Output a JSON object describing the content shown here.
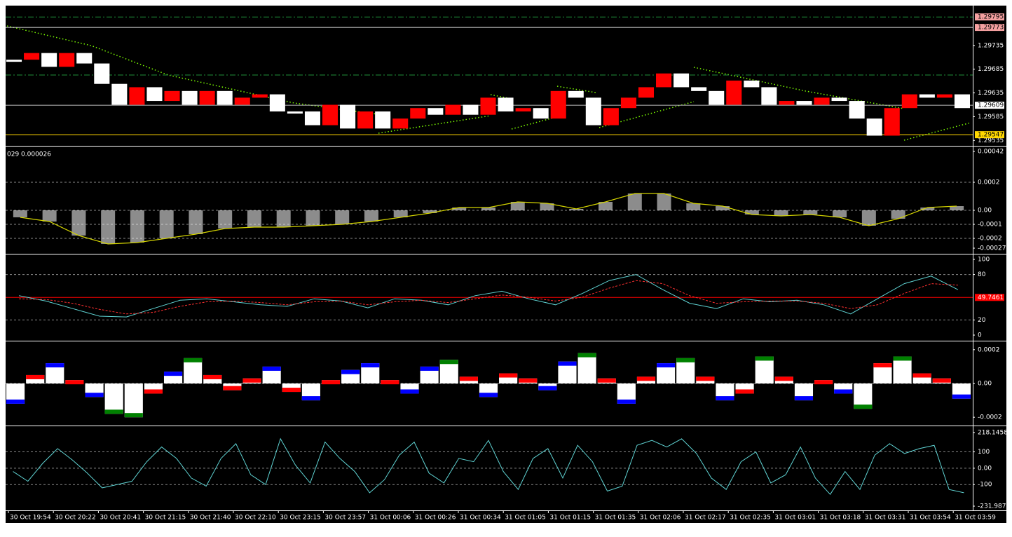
{
  "chart_data": [
    {
      "type": "renko",
      "up_color": "#ff0000",
      "down_color": "#ffffff",
      "ylim": [
        1.29528,
        1.29813
      ],
      "yticks": [
        1.29735,
        1.29685,
        1.29635,
        1.29585,
        1.29535
      ],
      "price_levels": [
        {
          "value": 1.29795,
          "bg": "#f4a0a0",
          "line": "#1f8f3a"
        },
        {
          "value": 1.29773,
          "bg": "#f4a0a0",
          "line": "#dddddd"
        },
        {
          "value": 1.29609,
          "bg": "#ffffff",
          "line": "#bbbbbb"
        },
        {
          "value": 1.29547,
          "bg": "#ffd700",
          "line": "#ffd700"
        }
      ],
      "values": [
        1.29705,
        1.29719,
        1.2969,
        1.29719,
        1.29697,
        1.29654,
        1.2961,
        1.29647,
        1.29618,
        1.29639,
        1.2961,
        1.29639,
        1.2961,
        1.29625,
        1.29632,
        1.29596,
        1.29596,
        1.29567,
        1.2961,
        1.2956,
        1.29596,
        1.2956,
        1.29581,
        1.29603,
        1.29589,
        1.2961,
        1.29589,
        1.29625,
        1.29596,
        1.29603,
        1.29581,
        1.29639,
        1.29625,
        1.29567,
        1.29603,
        1.29625,
        1.29647,
        1.29676,
        1.29647,
        1.29639,
        1.2961,
        1.29661,
        1.29647,
        1.2961,
        1.29618,
        1.2961,
        1.29625,
        1.29618,
        1.29581,
        1.29545,
        1.29603,
        1.29632,
        1.29625,
        1.29632,
        1.29603
      ]
    },
    {
      "type": "macd",
      "label": "029 0.000026",
      "bar_color": "#ffffff",
      "line_color": "#d4d400",
      "ylim": [
        -0.00027,
        0.00042
      ],
      "yticks": [
        0.00042,
        0.0002,
        {
          "value": 0,
          "label": "0.00"
        },
        -0.0001,
        -0.0002,
        -0.00027
      ],
      "values": [
        -5e-05,
        -8e-05,
        -0.00018,
        -0.00024,
        -0.00023,
        -0.0002,
        -0.00017,
        -0.00013,
        -0.00012,
        -0.00012,
        -0.00011,
        -0.0001,
        -8e-05,
        -5e-05,
        -2e-05,
        2e-05,
        2e-05,
        6e-05,
        5e-05,
        1e-05,
        6e-05,
        0.00012,
        0.00012,
        5e-05,
        3e-05,
        -3e-05,
        -4e-05,
        -3e-05,
        -5e-05,
        -0.00011,
        -6e-05,
        2e-05,
        3e-05
      ]
    },
    {
      "type": "stochastic",
      "ylim": [
        0,
        100
      ],
      "yticks": [
        100,
        80,
        20,
        0
      ],
      "level": 49.7461,
      "level_color": "#ff0000",
      "series": [
        {
          "color": "#5fd3d3",
          "values": [
            52,
            45,
            35,
            25,
            24,
            35,
            46,
            48,
            44,
            40,
            38,
            48,
            45,
            36,
            48,
            46,
            40,
            52,
            58,
            48,
            40,
            55,
            72,
            80,
            60,
            42,
            35,
            48,
            44,
            46,
            40,
            28,
            48,
            68,
            78,
            60
          ]
        },
        {
          "color": "#ff3030",
          "values": [
            48,
            47,
            42,
            34,
            28,
            30,
            38,
            44,
            45,
            43,
            40,
            44,
            45,
            40,
            44,
            46,
            43,
            48,
            53,
            50,
            45,
            50,
            62,
            72,
            68,
            52,
            42,
            44,
            45,
            45,
            42,
            35,
            40,
            55,
            68,
            66
          ]
        }
      ]
    },
    {
      "type": "histogram",
      "rise_color": "#0000ff",
      "fall_color": "#ff0000",
      "peak_color": "#008000",
      "bar_color": "#ffffff",
      "ylim": [
        -0.00022,
        0.00022
      ],
      "yticks": [
        0.0002,
        {
          "value": 0,
          "label": "0.00"
        },
        -0.0002
      ],
      "values": [
        -0.00012,
        5e-05,
        0.00012,
        2e-05,
        -8e-05,
        -0.00018,
        -0.0002,
        -6e-05,
        7e-05,
        0.00015,
        5e-05,
        -4e-05,
        3e-05,
        0.0001,
        -5e-05,
        -0.0001,
        2e-05,
        8e-05,
        0.00012,
        2e-05,
        -6e-05,
        0.0001,
        0.00014,
        4e-05,
        -8e-05,
        6e-05,
        3e-05,
        -4e-05,
        0.00013,
        0.00018,
        3e-05,
        -0.00012,
        4e-05,
        0.00012,
        0.00015,
        4e-05,
        -0.0001,
        -6e-05,
        0.00016,
        4e-05,
        -0.0001,
        2e-05,
        -6e-05,
        -0.00015,
        0.00012,
        0.00016,
        6e-05,
        3e-05,
        -9e-05
      ]
    },
    {
      "type": "line",
      "color": "#5fd3d3",
      "ylim": [
        -231.987,
        218.1458
      ],
      "yticks": [
        218.1458,
        100,
        {
          "value": 0,
          "label": "0.00"
        },
        -100,
        -231.987
      ],
      "values": [
        -20,
        -80,
        30,
        120,
        50,
        -30,
        -120,
        -100,
        -80,
        40,
        130,
        60,
        -60,
        -110,
        60,
        150,
        -40,
        -100,
        180,
        20,
        -90,
        160,
        60,
        -20,
        -150,
        -70,
        80,
        160,
        -30,
        -90,
        60,
        40,
        170,
        -20,
        -130,
        60,
        120,
        -60,
        140,
        40,
        -140,
        -110,
        140,
        170,
        130,
        180,
        90,
        -60,
        -130,
        40,
        100,
        -90,
        -40,
        130,
        -60,
        -160,
        -20,
        -130,
        80,
        150,
        90,
        120,
        140,
        -130,
        -150
      ]
    }
  ],
  "x_axis": {
    "categories": [
      "30 Oct 19:54",
      "30 Oct 20:22",
      "30 Oct 20:41",
      "30 Oct 21:15",
      "30 Oct 21:40",
      "30 Oct 22:10",
      "30 Oct 23:15",
      "30 Oct 23:57",
      "31 Oct 00:06",
      "31 Oct 00:26",
      "31 Oct 00:34",
      "31 Oct 01:05",
      "31 Oct 01:15",
      "31 Oct 01:35",
      "31 Oct 02:06",
      "31 Oct 02:17",
      "31 Oct 02:35",
      "31 Oct 03:01",
      "31 Oct 03:18",
      "31 Oct 03:31",
      "31 Oct 03:54",
      "31 Oct 03:59"
    ]
  }
}
